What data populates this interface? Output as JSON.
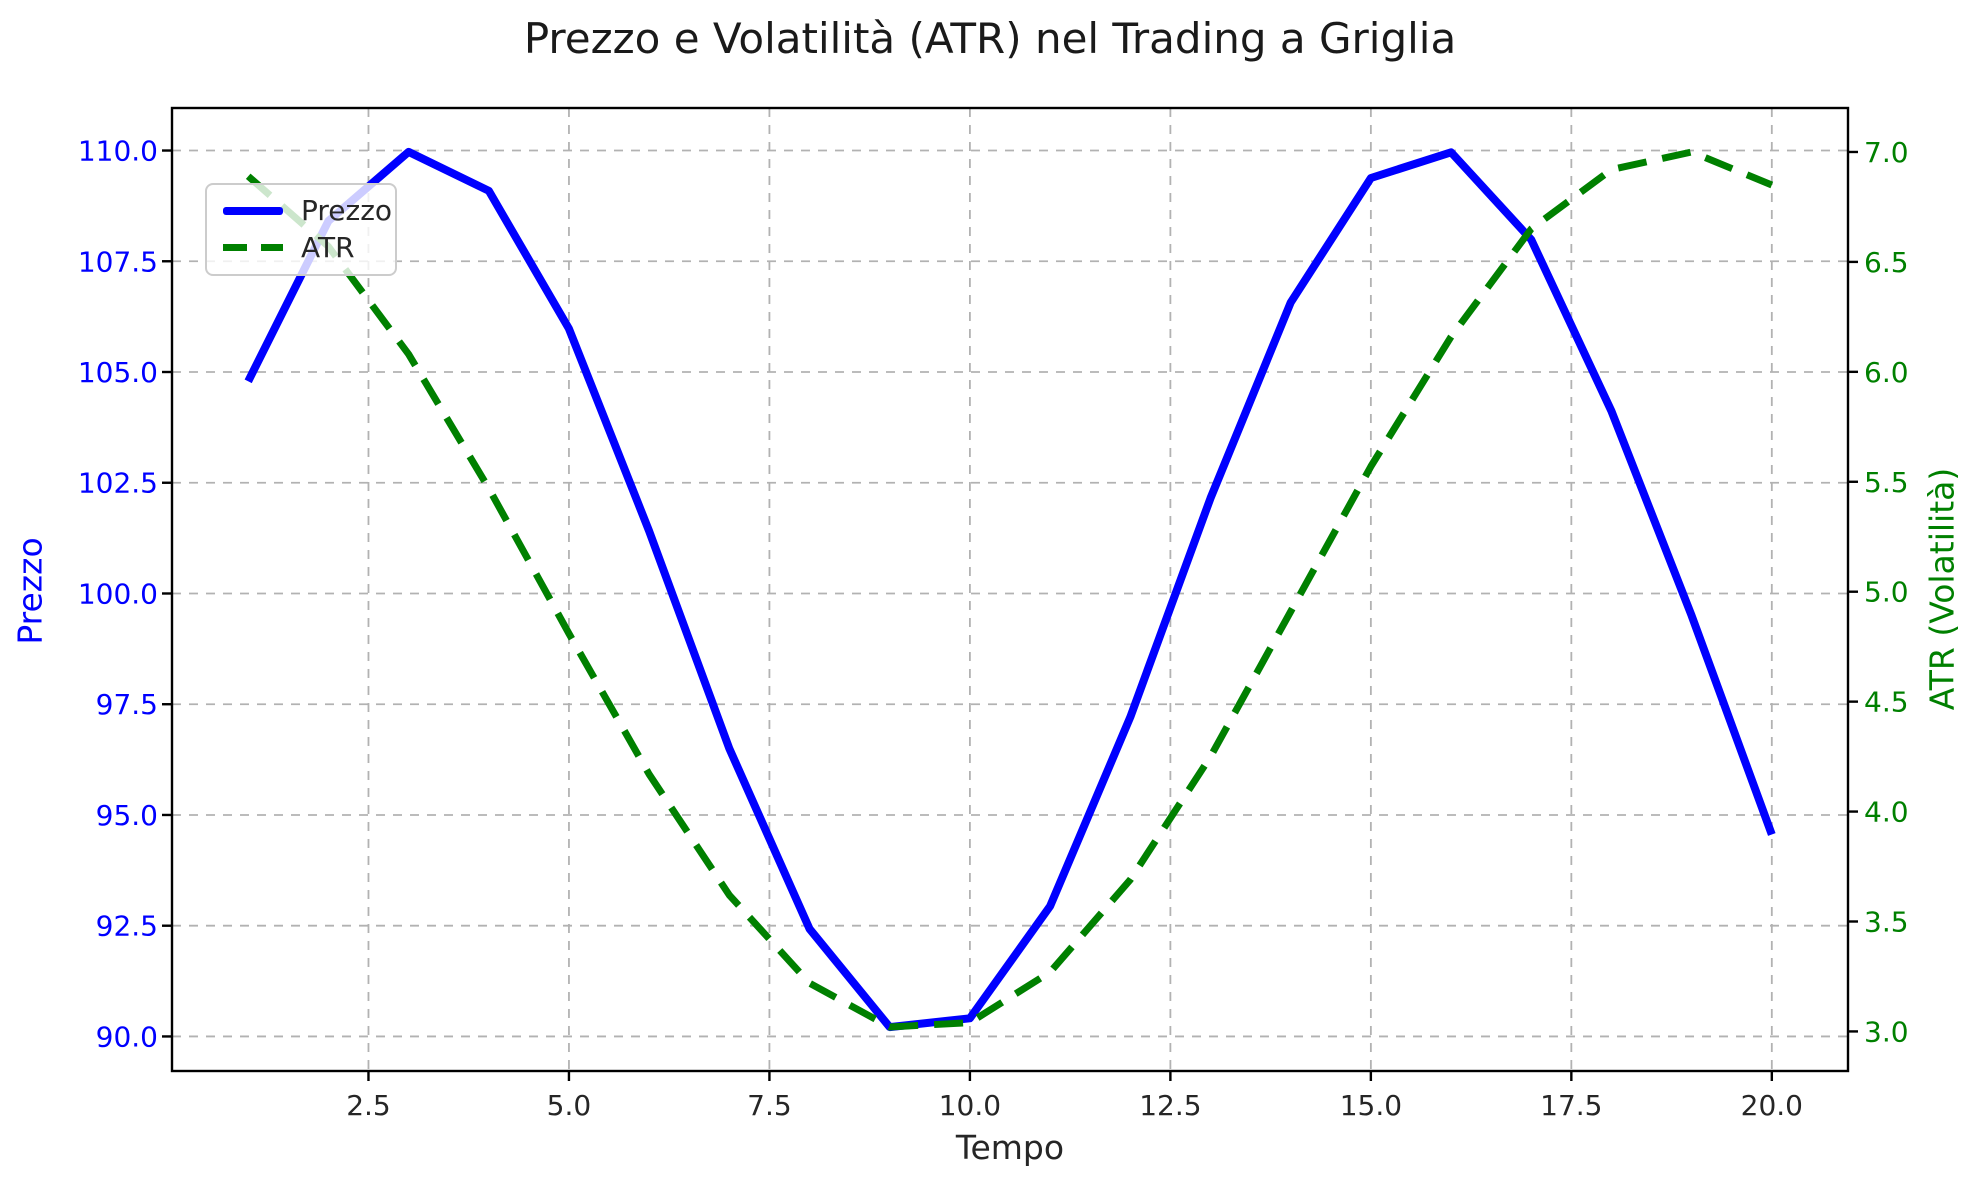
{
  "chart_data": {
    "type": "line",
    "title": "Prezzo e Volatilità (ATR) nel Trading a Griglia",
    "xlabel": "Tempo",
    "ylabel_left": "Prezzo",
    "ylabel_right": "ATR (Volatilità)",
    "x": [
      1,
      2,
      3,
      4,
      5,
      6,
      7,
      8,
      9,
      10,
      11,
      12,
      13,
      14,
      15,
      16,
      17,
      18,
      19,
      20
    ],
    "series": [
      {
        "name": "Prezzo",
        "axis": "left",
        "color": "#0000ff",
        "style": "solid",
        "linewidth": 8,
        "values": [
          104.79,
          108.41,
          109.97,
          109.09,
          105.98,
          101.41,
          96.5,
          92.43,
          90.21,
          90.41,
          92.94,
          97.21,
          102.15,
          106.57,
          109.38,
          109.96,
          107.99,
          104.12,
          99.5,
          94.56
        ]
      },
      {
        "name": "ATR",
        "axis": "right",
        "color": "#008000",
        "style": "dashed",
        "linewidth": 7,
        "values": [
          6.89,
          6.57,
          6.08,
          5.47,
          4.81,
          4.17,
          3.62,
          3.22,
          3.02,
          3.04,
          3.27,
          3.69,
          4.25,
          4.91,
          5.57,
          6.16,
          6.65,
          6.92,
          7.0,
          6.85
        ]
      }
    ],
    "xlim": [
      0.05,
      20.95
    ],
    "ylim_left": [
      89.22,
      110.96
    ],
    "ylim_right": [
      2.82,
      7.2
    ],
    "grid": true,
    "xticks": {
      "values": [
        2.5,
        5.0,
        7.5,
        10.0,
        12.5,
        15.0,
        17.5,
        20.0
      ],
      "labels": [
        "2.5",
        "5.0",
        "7.5",
        "10.0",
        "12.5",
        "15.0",
        "17.5",
        "20.0"
      ]
    },
    "yticks_left": {
      "values": [
        110.0,
        107.5,
        105.0,
        102.5,
        100.0,
        97.5,
        95.0,
        92.5,
        90.0
      ],
      "labels": [
        "110.0",
        "107.5",
        "105.0",
        "102.5",
        "100.0",
        "97.5",
        "95.0",
        "92.5",
        "90.0"
      ]
    },
    "yticks_right": {
      "values": [
        7.0,
        6.5,
        6.0,
        5.5,
        5.0,
        4.5,
        4.0,
        3.5,
        3.0
      ],
      "labels": [
        "7.0",
        "6.5",
        "6.0",
        "5.5",
        "5.0",
        "4.5",
        "4.0",
        "3.5",
        "3.0"
      ]
    },
    "legend": {
      "position": "upper-left",
      "entries": [
        {
          "label": "Prezzo",
          "color": "#0000ff",
          "style": "solid"
        },
        {
          "label": "ATR",
          "color": "#008000",
          "style": "dashed"
        }
      ]
    },
    "colors": {
      "grid": "#b2b2b2",
      "spine": "#000000",
      "tick": "#000000",
      "xtick_label": "#262626",
      "title": "#1a1a1a",
      "background": "#ffffff",
      "prezzo": "#0000ff",
      "atr": "#008000"
    }
  }
}
